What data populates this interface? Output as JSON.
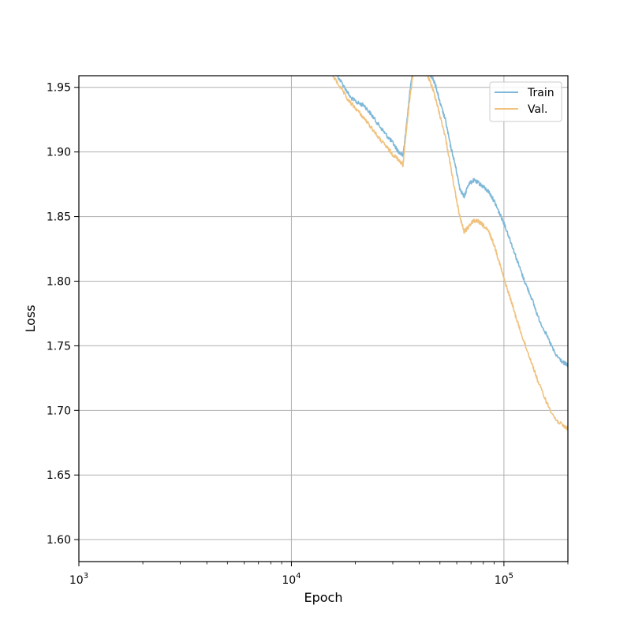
{
  "chart_data": {
    "type": "line",
    "title": "",
    "xlabel": "Epoch",
    "ylabel": "Loss",
    "xscale": "log",
    "xlim": [
      1000,
      200000
    ],
    "ylim": [
      1.583,
      1.959
    ],
    "x_ticks": [
      {
        "value": 1000,
        "base": "10",
        "exp": "3"
      },
      {
        "value": 10000,
        "base": "10",
        "exp": "4"
      },
      {
        "value": 100000,
        "base": "10",
        "exp": "5"
      }
    ],
    "y_ticks": [
      {
        "value": 1.6,
        "label": "1.60"
      },
      {
        "value": 1.65,
        "label": "1.65"
      },
      {
        "value": 1.7,
        "label": "1.70"
      },
      {
        "value": 1.75,
        "label": "1.75"
      },
      {
        "value": 1.8,
        "label": "1.80"
      },
      {
        "value": 1.85,
        "label": "1.85"
      },
      {
        "value": 1.9,
        "label": "1.90"
      },
      {
        "value": 1.95,
        "label": "1.95"
      }
    ],
    "grid": true,
    "legend_position": "top-right",
    "series": [
      {
        "name": "Train",
        "color": "#7fb8d8",
        "x": [
          14500,
          16000,
          17500,
          19000,
          20500,
          22000,
          24000,
          26000,
          28000,
          30000,
          32000,
          33500,
          34500,
          36000,
          38000,
          40000,
          42000,
          44000,
          46000,
          48000,
          50000,
          53000,
          56000,
          59000,
          62000,
          65000,
          68000,
          72000,
          76000,
          80000,
          85000,
          90000,
          95000,
          100000,
          108000,
          116000,
          125000,
          135000,
          145000,
          160000,
          175000,
          190000,
          200000
        ],
        "y": [
          1.97,
          1.962,
          1.952,
          1.942,
          1.938,
          1.936,
          1.928,
          1.92,
          1.913,
          1.907,
          1.9,
          1.897,
          1.915,
          1.945,
          1.975,
          1.985,
          1.975,
          1.962,
          1.958,
          1.95,
          1.938,
          1.925,
          1.905,
          1.89,
          1.872,
          1.865,
          1.875,
          1.878,
          1.876,
          1.873,
          1.869,
          1.862,
          1.853,
          1.845,
          1.83,
          1.815,
          1.8,
          1.787,
          1.772,
          1.757,
          1.743,
          1.737,
          1.735
        ]
      },
      {
        "name": "Val.",
        "color": "#f0c27e",
        "x": [
          15500,
          17000,
          18500,
          20000,
          22000,
          24000,
          26000,
          28000,
          30000,
          32000,
          33500,
          34500,
          36000,
          38000,
          40000,
          42000,
          44000,
          46000,
          48000,
          50000,
          53000,
          56000,
          59000,
          62000,
          65000,
          68000,
          72000,
          76000,
          80000,
          85000,
          90000,
          95000,
          100000,
          108000,
          116000,
          125000,
          135000,
          145000,
          160000,
          175000,
          190000,
          200000
        ],
        "y": [
          1.96,
          1.95,
          1.94,
          1.934,
          1.926,
          1.918,
          1.91,
          1.904,
          1.898,
          1.894,
          1.89,
          1.912,
          1.94,
          1.97,
          1.98,
          1.97,
          1.958,
          1.95,
          1.94,
          1.928,
          1.912,
          1.89,
          1.868,
          1.85,
          1.838,
          1.842,
          1.847,
          1.846,
          1.843,
          1.838,
          1.828,
          1.815,
          1.802,
          1.785,
          1.768,
          1.752,
          1.737,
          1.722,
          1.705,
          1.693,
          1.688,
          1.686
        ]
      }
    ]
  }
}
